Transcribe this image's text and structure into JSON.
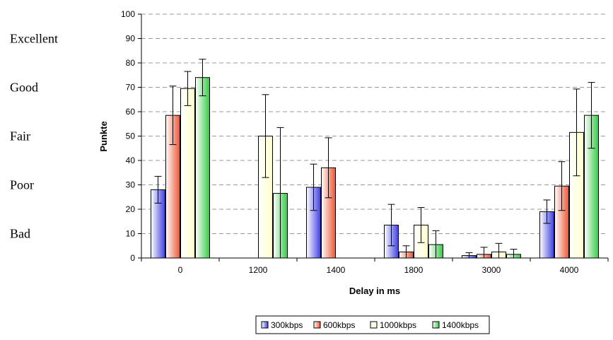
{
  "chart_data": {
    "type": "bar",
    "categories": [
      "0",
      "1200",
      "1400",
      "1800",
      "3000",
      "4000"
    ],
    "series": [
      {
        "name": "300kbps",
        "values": [
          28,
          0,
          29,
          13.5,
          1,
          19
        ],
        "errors": [
          5.5,
          0,
          9.5,
          8.5,
          1.2,
          4.8
        ],
        "color": "#3f3fe0"
      },
      {
        "name": "600kbps",
        "values": [
          58.5,
          0,
          37,
          2.5,
          1.5,
          29.5
        ],
        "errors": [
          12,
          0,
          12.3,
          2.5,
          2.9,
          10
        ],
        "color": "#ee5533"
      },
      {
        "name": "1000kbps",
        "values": [
          69.5,
          50,
          0,
          13.5,
          2.5,
          51.5
        ],
        "errors": [
          7,
          17,
          0,
          7.2,
          3.5,
          17.8
        ],
        "color": "#ffffcc"
      },
      {
        "name": "1400kbps",
        "values": [
          74,
          26.5,
          0,
          5.5,
          1.5,
          58.5
        ],
        "errors": [
          7.5,
          27,
          0,
          5.7,
          2.1,
          13.5
        ],
        "color": "#33cc44"
      }
    ],
    "xlabel": "Delay in ms",
    "ylabel": "Punkte",
    "ylim": [
      0,
      100
    ],
    "yticks": [
      "0",
      "10",
      "20",
      "30",
      "40",
      "50",
      "60",
      "70",
      "80",
      "90",
      "100"
    ],
    "grid": true,
    "legend_position": "bottom",
    "quality_labels": [
      {
        "label": "Excellent",
        "value": 90
      },
      {
        "label": "Good",
        "value": 70
      },
      {
        "label": "Fair",
        "value": 50
      },
      {
        "label": "Poor",
        "value": 30
      },
      {
        "label": "Bad",
        "value": 10
      }
    ]
  }
}
